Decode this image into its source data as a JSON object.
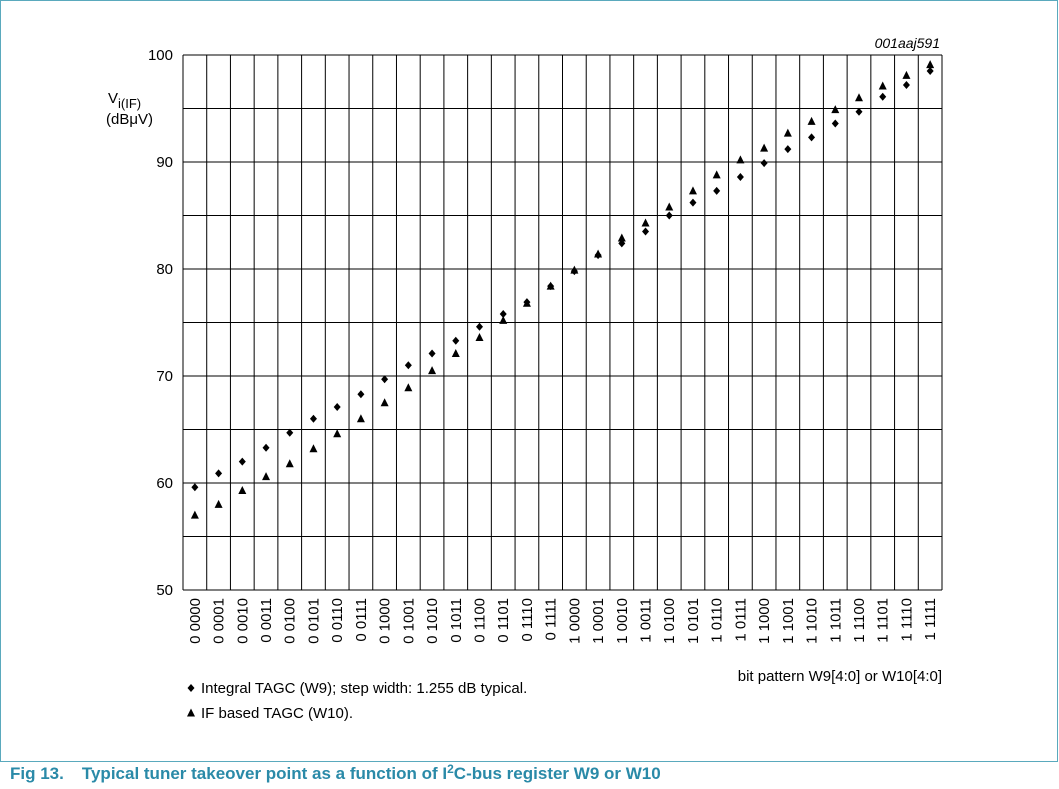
{
  "chart_data": {
    "type": "scatter",
    "figure_id": "001aaj591",
    "ylabel": {
      "main": "V",
      "sub": "i(IF)",
      "unit": "(dBμV)"
    },
    "xlabel": "bit pattern W9[4:0] or W10[4:0]",
    "caption": {
      "label": "Fig 13.",
      "before": "Typical tuner takeover point as a function of I",
      "sup": "2",
      "after": "C-bus register W9 or W10"
    },
    "categories": [
      "0 0000",
      "0 0001",
      "0 0010",
      "0 0011",
      "0 0100",
      "0 0101",
      "0 0110",
      "0 0111",
      "0 1000",
      "0 1001",
      "0 1010",
      "0 1011",
      "0 1100",
      "0 1101",
      "0 1110",
      "0 1111",
      "1 0000",
      "1 0001",
      "1 0010",
      "1 0011",
      "1 0100",
      "1 0101",
      "1 0110",
      "1 0111",
      "1 1000",
      "1 1001",
      "1 1010",
      "1 1011",
      "1 1100",
      "1 1101",
      "1 1110",
      "1 1111"
    ],
    "series": [
      {
        "name": "Integral TAGC (W9); step width: 1.255 dB typical.",
        "marker": "diamond",
        "color": "#000000",
        "values": [
          59.6,
          60.9,
          62.0,
          63.3,
          64.7,
          66.0,
          67.1,
          68.3,
          69.7,
          71.0,
          72.1,
          73.3,
          74.6,
          75.8,
          76.9,
          78.4,
          79.8,
          81.3,
          82.4,
          83.5,
          85.0,
          86.2,
          87.3,
          88.6,
          89.9,
          91.2,
          92.3,
          93.6,
          94.7,
          96.1,
          97.2,
          98.5
        ]
      },
      {
        "name": "IF based TAGC (W10).",
        "marker": "triangle",
        "color": "#000000",
        "values": [
          57.0,
          58.0,
          59.3,
          60.6,
          61.8,
          63.2,
          64.6,
          66.0,
          67.5,
          68.9,
          70.5,
          72.1,
          73.6,
          75.2,
          76.8,
          78.4,
          79.9,
          81.4,
          82.9,
          84.3,
          85.8,
          87.3,
          88.8,
          90.2,
          91.3,
          92.7,
          93.8,
          94.9,
          96.0,
          97.1,
          98.1,
          99.1
        ]
      }
    ],
    "ylim": [
      50,
      100
    ],
    "yticks": [
      50,
      60,
      70,
      80,
      90,
      100
    ],
    "minor_yticks": [
      55,
      65,
      75,
      85,
      95
    ],
    "grid": true
  }
}
